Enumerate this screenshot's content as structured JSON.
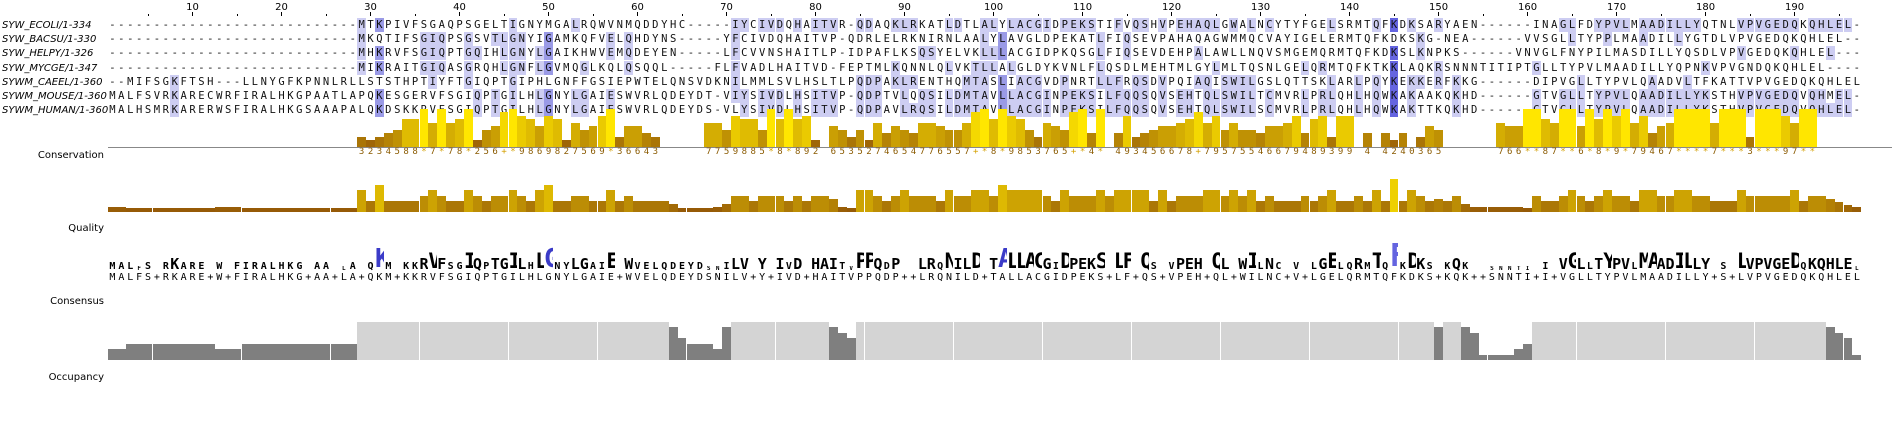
{
  "app": "Jalview alignment view",
  "sequences": [
    {
      "name": "SYW_ECOLI/1-334",
      "seq": "----------------------------MTKPIVFSGAQPSGELTIGNYMGALRQWVNMQDDYHC-----IYCIVDQHAITVR-QDAQKLRKATLDTLALYLACGIDPEKSTIFVQSHVPEHAQLGWALNCYTYFGELSRMTQFKDKSARYAEN------INAGLFDYPVLMAADILLYQTNLVPVGEDQKQHLEL"
    },
    {
      "name": "SYW_BACSU/1-330",
      "seq": "----------------------------MKQTIFSGIQPSGSVTLGNYIGAMKQFVELQHDYNS-----YFCIVDQHAITVP-QDRLELRKNIRNLAALYLAVGLDPEKATLFIQSEVPAHAQAGWMMQCVAYIGELERMTQFKDKSKG-NEA------VVSGLLTYPPLMAADILLYGTDLVPVGEDQKQHLEL"
    },
    {
      "name": "SYW_HELPY/1-326",
      "seq": "----------------------------MHKRVFSGIQPTGQIHLGNYLGAIKHWVEMQDEYEN-----LFCVVNSHAITLP-IDPAFLKSQSYELVKLLLACGIDPKQSGLFIQSEVDEHPALAWLLNQVSMGEMQRMTQFKDKSLKNPKS------VNVGLFNYPILMASDILLYQSDLVPVGEDQKQHLEL"
    },
    {
      "name": "SYW_MYCGE/1-347",
      "seq": "----------------------------MIKRAITGIQASGRQHLGNFLGVMQGLKQLQSQQL-----FLFVADLHAITVD-FEPTMLKQNNLQLVKTLLALGLDYKVNLFLQSDLMEHTMLGYLMLTQSNLGELQRMTQFKTKKLAQKRSNNNTITIPTGLLTYPVLMAADILLYQPNKVPVGNDQKQHLEL"
    },
    {
      "name": "SYWM_CAEEL/1-360",
      "seq": "--MIFSGKFTSH---LLNYGFKPNNLRLLSTSTHPTIYFTGIQPTGIPHLGNFFGSIEPWTELQNSVDKNILMMLSVLHSLTLPQDPAKLRENTHQMTASLIACGVDPNRTLLFRQSDVPQIAQISWILGSLQTTSKLARLPQYKEKKERFKKG------DIPVGLLTYPVLQAADVLTFKATTVPVGEDQKQHLEL"
    },
    {
      "name": "SYWM_MOUSE/1-360",
      "seq": "MALFSVRKARECWRFIRALHKGPAATLAPQKESGERVFSGIQPTGILHLGNYLGAIESWVRLQDEYDT-VIYSIVDLHSITVP-QDPTVLQQSILDMTAVLLACGINPEKSILFQQSQVSEHTQLSWILTCMVRLPRLQHLHQWKAKAAKQKHD------GTVGLLTYPVLQAADILLYKSTHVPVGEDQVQHMEL"
    },
    {
      "name": "SYWM_HUMAN/1-360",
      "seq": "MALHSMRKARERWSFIRALHKGSAAAPALQKDSKKRVFSGIQPTGILHLGNYLGAIESWVRLQDEYDS-VLYSIVDLHSITVP-QDPAVLRQSILDMTAVLLACGINPEKSILFQQSQVSEHTQLSWILSCMVRLPRLQHLHQWKAKTTKQKHD------GTVGLLTYPVLQAADILLYKSTHVPVGEDQVQHLEL"
    }
  ],
  "ruler": {
    "start": 1,
    "ticks": [
      "10",
      "20",
      "30",
      "40",
      "50",
      "60",
      "70",
      "80",
      "90",
      "100",
      "110",
      "120",
      "130",
      "140",
      "150",
      "160",
      "170",
      "180",
      "190"
    ]
  },
  "annotations": {
    "conservation_label": "Conservation",
    "quality_label": "Quality",
    "consensus_label": "Consensus",
    "occupancy_label": "Occupancy",
    "conservation_scores": "----------------------------3234588*7*78*256+*9869827569*36643-----7759885*8*892-6535274654776557+*8*9853765+*4*-493456678+79575546679489399-4-4240365------766**87**6*8*9*79467****7***3***97**",
    "consensus_string": "MALFS+RKARE+W+FIRALHKG+AA+LA+QKM+KKRVFSGIQPTGILHLGNYLGAIE+WVELQDEYDSNILV+Y+IVD+HAITVPPQDP++LRQNILD+TALLACGIDPEKS+LF+QS+VPEH+QL+WILNC+V+LGELQRMTQFKDKS+KQK++SNNTI+I+VGLLTYPVLMAADILLY+S+LVPVGEDQKQHLEL"
  },
  "colors": {
    "bg": "#ffffff",
    "pid_high": "#6464e0",
    "pid_mid": "#9a9ae6",
    "pid_low": "#cdcdf2",
    "bar_yellow": "#ffe600",
    "bar_brown": "#8a4a08",
    "consensus_char": "#8a5a00",
    "occupancy_gap": "#7f7f7f",
    "occupancy_full": "#d4d4d4"
  }
}
